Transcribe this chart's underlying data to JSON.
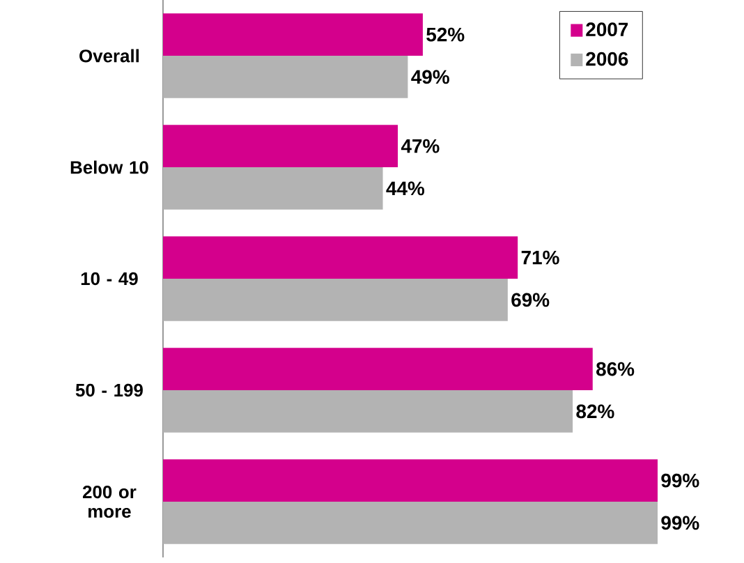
{
  "chart_data": {
    "type": "bar",
    "orientation": "horizontal",
    "categories": [
      "Overall",
      "Below 10",
      "10 - 49",
      "50 - 199",
      "200 or more"
    ],
    "series": [
      {
        "name": "2007",
        "color": "#d4008c",
        "values": [
          52,
          47,
          71,
          86,
          99
        ],
        "value_labels": [
          "52%",
          "47%",
          "71%",
          "86%",
          "99%"
        ]
      },
      {
        "name": "2006",
        "color": "#b3b3b3",
        "values": [
          49,
          44,
          69,
          82,
          99
        ],
        "value_labels": [
          "49%",
          "44%",
          "69%",
          "82%",
          "99%"
        ]
      }
    ],
    "legend": "top right",
    "tick_labels": "y"
  }
}
